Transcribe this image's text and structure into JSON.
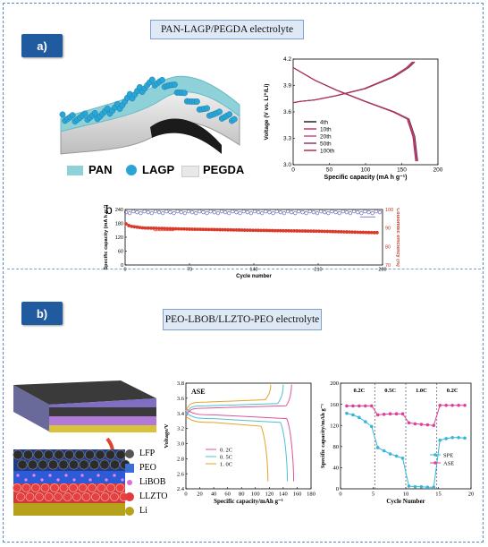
{
  "panel_a": {
    "label": "a)",
    "title": "PAN-LAGP/PEGDA electrolyte",
    "legend": [
      {
        "name": "PAN",
        "color": "#8fd1d8"
      },
      {
        "name": "LAGP",
        "color": "#2aa6d6"
      },
      {
        "name": "PEGDA",
        "color": "#e8e8e8"
      }
    ],
    "sublabel_b": "b"
  },
  "panel_b": {
    "label": "b)",
    "title": "PEO-LBOB/LLZTO-PEO electrolyte",
    "layer_legend": [
      {
        "name": "LFP",
        "color": "#555555"
      },
      {
        "name": "PEO",
        "color": "#3b6fd8"
      },
      {
        "name": "LiBOB",
        "color": "#e06ad6"
      },
      {
        "name": "LLZTO",
        "color": "#e23b3b"
      },
      {
        "name": "Li",
        "color": "#b8a21a"
      }
    ]
  },
  "chart_data": [
    {
      "type": "line",
      "xlabel": "Specific capacity (mA h g⁻¹)",
      "ylabel": "Voltage (V vs. Li⁺/Li)",
      "xlim": [
        0,
        200
      ],
      "ylim": [
        2.8,
        4.3
      ],
      "xticks": [
        "0",
        "50",
        "100",
        "150",
        "200"
      ],
      "yticks": [
        "3.0",
        "3.3",
        "3.6",
        "3.9",
        "4.2"
      ],
      "series": [
        {
          "name": "4th",
          "color": "#222222"
        },
        {
          "name": "10th",
          "color": "#d0306a"
        },
        {
          "name": "20th",
          "color": "#c94f8a"
        },
        {
          "name": "50th",
          "color": "#8e3b78"
        },
        {
          "name": "100th",
          "color": "#b0304f"
        }
      ],
      "charge_curve": {
        "x": [
          0,
          10,
          30,
          60,
          100,
          140,
          160,
          168
        ],
        "y": [
          3.68,
          3.7,
          3.72,
          3.78,
          3.88,
          4.05,
          4.18,
          4.26
        ]
      },
      "discharge_curve": {
        "x": [
          0,
          10,
          30,
          60,
          100,
          140,
          160,
          168,
          172
        ],
        "y": [
          4.18,
          4.12,
          4.0,
          3.86,
          3.7,
          3.55,
          3.45,
          3.2,
          2.85
        ]
      }
    },
    {
      "type": "scatter",
      "xlabel": "Cycle number",
      "ylabel": "Specific capacity (mA h g⁻¹)",
      "ylabel_right": "Coulombic efficiency (%)",
      "xlim": [
        0,
        280
      ],
      "ylim": [
        0,
        240
      ],
      "ylim_right": [
        70,
        100
      ],
      "xticks": [
        "0",
        "70",
        "140",
        "210",
        "280"
      ],
      "yticks": [
        "0",
        "60",
        "120",
        "180",
        "240"
      ],
      "yticks_right": [
        "70",
        "80",
        "90",
        "100"
      ],
      "series": [
        {
          "name": "Coulombic efficiency",
          "color": "#5b5bb0",
          "x": [
            1,
            280
          ],
          "y_right": [
            98.5,
            98.5
          ]
        },
        {
          "name": "Specific capacity",
          "color": "#d93a2a",
          "x": [
            1,
            5,
            20,
            70,
            140,
            210,
            270
          ],
          "y": [
            178,
            168,
            160,
            155,
            150,
            146,
            140
          ]
        }
      ]
    },
    {
      "type": "line",
      "annotation": "ASE",
      "xlabel": "Specific capacity/mAh g⁻¹",
      "ylabel": "Voltage/V",
      "xlim": [
        0,
        180
      ],
      "ylim": [
        2.4,
        3.8
      ],
      "xticks": [
        "0",
        "20",
        "40",
        "60",
        "80",
        "100",
        "120",
        "140",
        "160",
        "180"
      ],
      "yticks": [
        "2.4",
        "2.6",
        "2.8",
        "3.0",
        "3.2",
        "3.4",
        "3.6",
        "3.8"
      ],
      "series": [
        {
          "name": "0. 2C",
          "color": "#e0529a",
          "charge_end": 152,
          "discharge_end": 155,
          "plateau_c": 3.47,
          "plateau_d": 3.38
        },
        {
          "name": "0. 5C",
          "color": "#4cc1d6",
          "charge_end": 140,
          "discharge_end": 146,
          "plateau_c": 3.5,
          "plateau_d": 3.33
        },
        {
          "name": "1. 0C",
          "color": "#e6a129",
          "charge_end": 122,
          "discharge_end": 118,
          "plateau_c": 3.55,
          "plateau_d": 3.28
        }
      ]
    },
    {
      "type": "line",
      "xlabel": "Cycle Number",
      "ylabel": "Specific capacity/mAh g⁻¹",
      "xlim": [
        0,
        21
      ],
      "ylim": [
        0,
        200
      ],
      "xticks": [
        "0",
        "5",
        "10",
        "15",
        "20"
      ],
      "yticks": [
        "0",
        "40",
        "80",
        "120",
        "160",
        "200"
      ],
      "rate_labels": [
        "0.2C",
        "0.5C",
        "1.0C",
        "0.2C"
      ],
      "series": [
        {
          "name": "SPE",
          "color": "#37b5d8",
          "x": [
            1,
            2,
            3,
            4,
            5,
            6,
            7,
            8,
            9,
            10,
            11,
            12,
            13,
            14,
            15,
            16,
            17,
            18,
            19,
            20
          ],
          "y": [
            143,
            140,
            135,
            127,
            118,
            78,
            72,
            66,
            62,
            58,
            5,
            4,
            4,
            3,
            3,
            92,
            95,
            97,
            97,
            96
          ]
        },
        {
          "name": "ASE",
          "color": "#e0409a",
          "x": [
            1,
            2,
            3,
            4,
            5,
            6,
            7,
            8,
            9,
            10,
            11,
            12,
            13,
            14,
            15,
            16,
            17,
            18,
            19,
            20
          ],
          "y": [
            157,
            157,
            157,
            157,
            157,
            140,
            141,
            142,
            142,
            142,
            125,
            123,
            122,
            121,
            120,
            158,
            158,
            158,
            158,
            158
          ]
        }
      ]
    }
  ]
}
